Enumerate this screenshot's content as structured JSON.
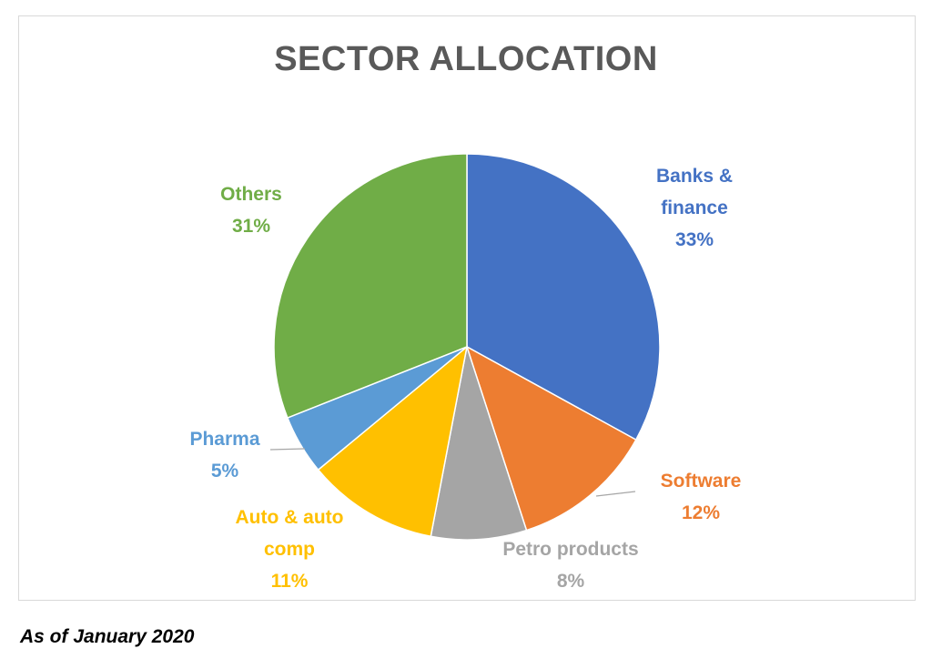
{
  "chart_data": {
    "type": "pie",
    "title": "SECTOR ALLOCATION",
    "legend": "none",
    "slices": [
      {
        "label_lines": [
          "Banks &",
          "finance"
        ],
        "percent_label": "33%",
        "value": 33,
        "color": "#4472c4"
      },
      {
        "label_lines": [
          "Software"
        ],
        "percent_label": "12%",
        "value": 12,
        "color": "#ed7d31"
      },
      {
        "label_lines": [
          "Petro products"
        ],
        "percent_label": "8%",
        "value": 8,
        "color": "#a5a5a5"
      },
      {
        "label_lines": [
          "Auto & auto",
          "comp"
        ],
        "percent_label": "11%",
        "value": 11,
        "color": "#ffc000"
      },
      {
        "label_lines": [
          "Pharma"
        ],
        "percent_label": "5%",
        "value": 5,
        "color": "#5b9bd5"
      },
      {
        "label_lines": [
          "Others"
        ],
        "percent_label": "31%",
        "value": 31,
        "color": "#70ad47"
      }
    ]
  },
  "caption": "As of January 2020"
}
